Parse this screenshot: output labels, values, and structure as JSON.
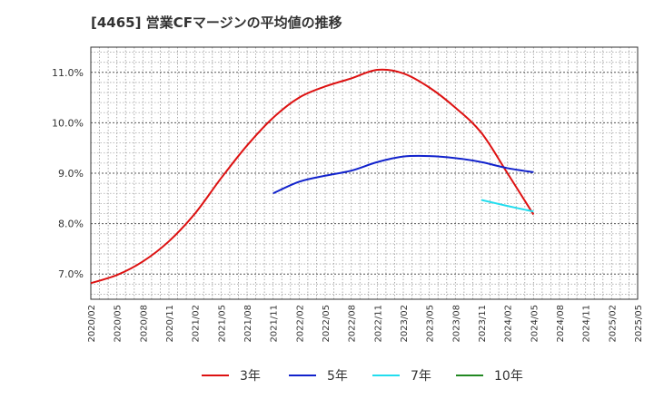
{
  "chart_data": {
    "type": "line",
    "title": "[4465]  営業CFマージンの平均値の推移",
    "xlabel": "",
    "ylabel": "",
    "ylim": [
      6.5,
      11.5
    ],
    "y_ticks": [
      7.0,
      8.0,
      9.0,
      10.0,
      11.0
    ],
    "y_tick_labels": [
      "7.0%",
      "8.0%",
      "9.0%",
      "10.0%",
      "11.0%"
    ],
    "x_tick_labels": [
      "2020/02",
      "2020/05",
      "2020/08",
      "2020/11",
      "2021/02",
      "2021/05",
      "2021/08",
      "2021/11",
      "2022/02",
      "2022/05",
      "2022/08",
      "2022/11",
      "2023/02",
      "2023/05",
      "2023/08",
      "2023/11",
      "2024/02",
      "2024/05",
      "2024/08",
      "2024/11",
      "2025/02",
      "2025/05"
    ],
    "grid": true,
    "legend_position": "bottom",
    "series": [
      {
        "name": "3年",
        "color": "#dd1111",
        "x": [
          "2020/02",
          "2020/05",
          "2020/08",
          "2020/11",
          "2021/02",
          "2021/05",
          "2021/08",
          "2021/11",
          "2022/02",
          "2022/05",
          "2022/08",
          "2022/11",
          "2023/02",
          "2023/05",
          "2023/08",
          "2023/11",
          "2024/02",
          "2024/05"
        ],
        "values": [
          6.82,
          6.98,
          7.25,
          7.65,
          8.2,
          8.9,
          9.55,
          10.1,
          10.5,
          10.72,
          10.88,
          11.05,
          10.98,
          10.7,
          10.3,
          9.8,
          9.0,
          8.18
        ]
      },
      {
        "name": "5年",
        "color": "#1122cc",
        "x": [
          "2021/11",
          "2022/02",
          "2022/05",
          "2022/08",
          "2022/11",
          "2023/02",
          "2023/05",
          "2023/08",
          "2023/11",
          "2024/02",
          "2024/05"
        ],
        "values": [
          8.6,
          8.83,
          8.95,
          9.05,
          9.22,
          9.33,
          9.34,
          9.3,
          9.22,
          9.1,
          9.02
        ]
      },
      {
        "name": "7年",
        "color": "#22ddee",
        "x": [
          "2023/11",
          "2024/02",
          "2024/05"
        ],
        "values": [
          8.47,
          8.35,
          8.24
        ]
      },
      {
        "name": "10年",
        "color": "#228822",
        "x": [],
        "values": []
      }
    ]
  }
}
